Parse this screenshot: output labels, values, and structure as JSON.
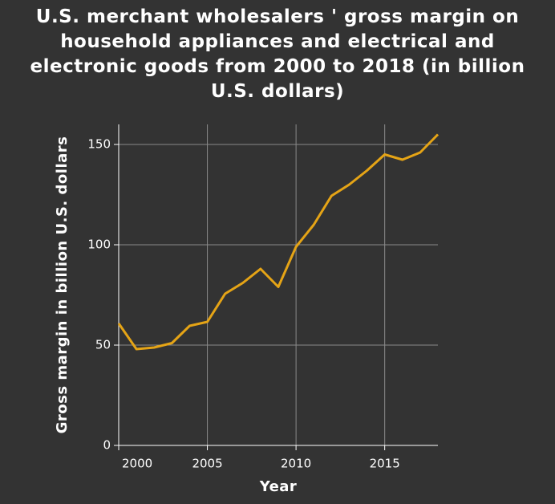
{
  "chart_data": {
    "type": "line",
    "title": "U.S. merchant wholesalers ' gross margin on household appliances and electrical and electronic goods from 2000 to 2018 (in billion U.S. dollars)",
    "x_label": "Year",
    "y_label": "Gross margin in billion U.S. dollars",
    "x": [
      2000,
      2001,
      2002,
      2003,
      2004,
      2005,
      2006,
      2007,
      2008,
      2009,
      2010,
      2011,
      2012,
      2013,
      2014,
      2015,
      2016,
      2017,
      2018
    ],
    "series": [
      {
        "name": "Gross margin",
        "color": "#e5a416",
        "values": [
          60.8,
          48,
          48.8,
          51,
          59.6,
          61.6,
          75.6,
          81,
          88,
          79,
          99,
          110,
          124.4,
          130,
          137,
          145,
          142.4,
          146,
          155
        ]
      }
    ],
    "xlim": [
      2000,
      2018
    ],
    "xticks": [
      2000,
      2005,
      2010,
      2015
    ],
    "ylim": [
      0,
      160
    ],
    "yticks": [
      0,
      50,
      100,
      150
    ],
    "grid": true
  }
}
